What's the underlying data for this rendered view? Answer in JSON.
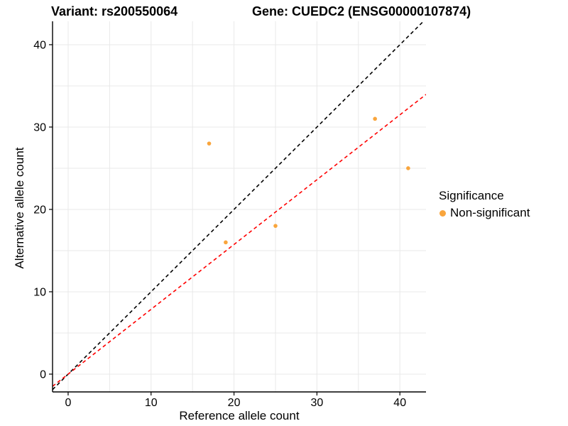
{
  "chart_data": {
    "type": "scatter",
    "titles": {
      "left": "Variant: rs200550064",
      "right": "Gene: CUEDC2 (ENSG00000107874)"
    },
    "xlabel": "Reference allele count",
    "ylabel": "Alternative allele count",
    "xlim": [
      -1.88,
      43.15
    ],
    "ylim": [
      -2.16,
      42.84
    ],
    "x_ticks": [
      0,
      10,
      20,
      30,
      40
    ],
    "y_ticks": [
      0,
      10,
      20,
      30,
      40
    ],
    "grid_step": 5,
    "grid_max": 40,
    "grid_color": "#E9E9E9",
    "background": "#FFFFFF",
    "point_color": "#F9A53C",
    "points": [
      {
        "x": 17,
        "y": 28
      },
      {
        "x": 19,
        "y": 16
      },
      {
        "x": 25,
        "y": 18
      },
      {
        "x": 37,
        "y": 31
      },
      {
        "x": 41,
        "y": 25
      }
    ],
    "lines": [
      {
        "name": "identity-line",
        "slope": 1,
        "intercept": 0,
        "color": "#000000",
        "dash": "5,4"
      },
      {
        "name": "fit-line",
        "slope": 0.787,
        "intercept": 0,
        "color": "#FF0000",
        "dash": "5,4"
      }
    ],
    "legend": {
      "title": "Significance",
      "items": [
        {
          "label": "Non-significant",
          "color": "#F9A53C"
        }
      ]
    }
  }
}
